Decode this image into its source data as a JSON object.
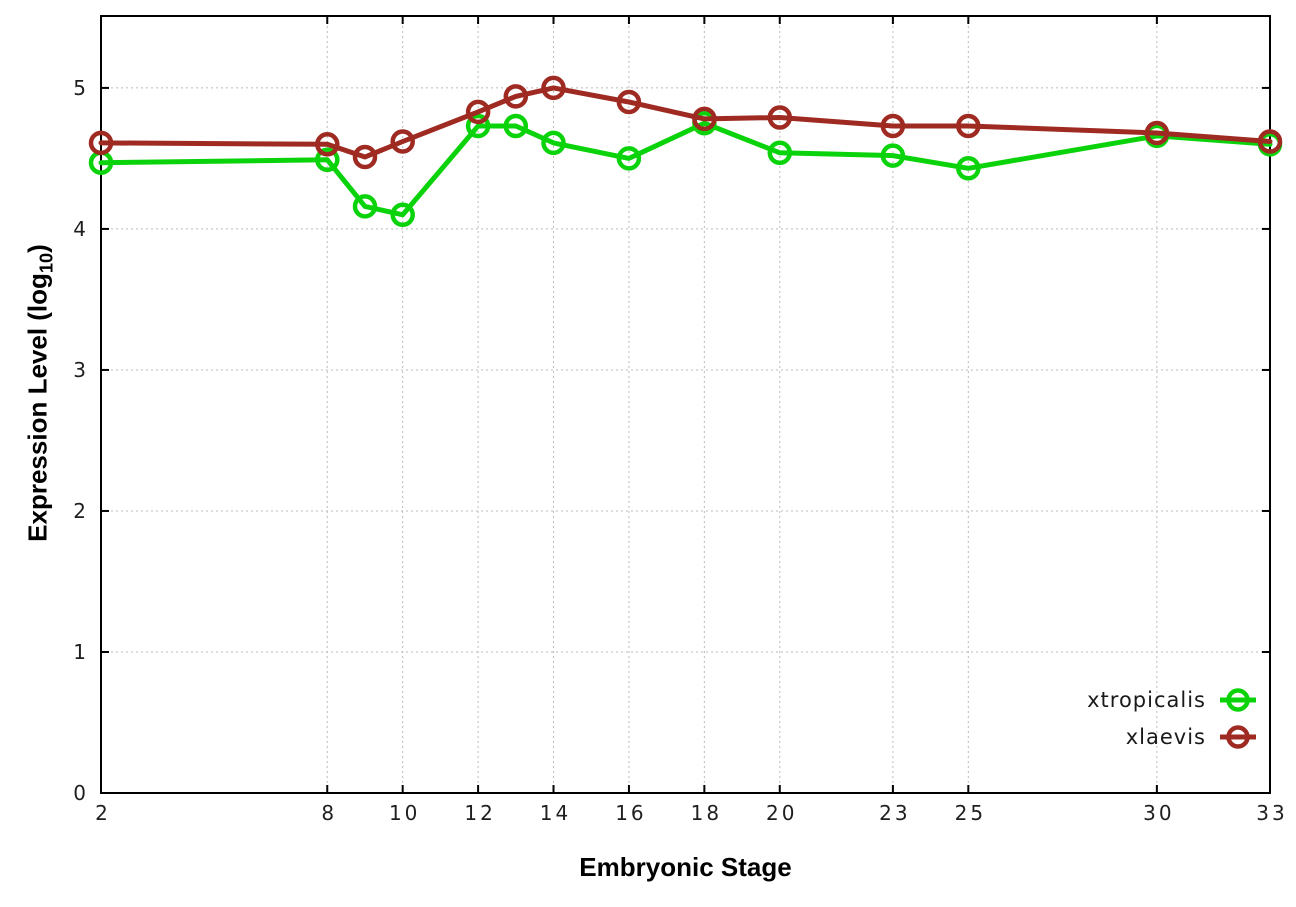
{
  "figure": {
    "xlabel": "Embryonic Stage",
    "ylabel_main": "Expression Level (log",
    "ylabel_sub": "10",
    "ylabel_end": ")"
  },
  "chart_data": {
    "type": "line",
    "title": "",
    "xlabel": "Embryonic Stage",
    "ylabel": "Expression Level (log10)",
    "x": [
      2,
      8,
      9,
      10,
      12,
      13,
      14,
      16,
      18,
      20,
      23,
      25,
      30,
      33
    ],
    "xticks": [
      2,
      8,
      10,
      12,
      14,
      16,
      18,
      20,
      23,
      25,
      30,
      33
    ],
    "yticks": [
      0,
      1,
      2,
      3,
      4,
      5
    ],
    "xlim": [
      2,
      33
    ],
    "ylim": [
      0,
      5.51
    ],
    "grid": "dotted",
    "legend_position": "inside-lower-right",
    "series": [
      {
        "name": "xtropicalis",
        "color": "#0bd30b",
        "marker": "open-circle",
        "values": [
          4.47,
          4.49,
          4.16,
          4.1,
          4.73,
          4.73,
          4.61,
          4.5,
          4.75,
          4.54,
          4.52,
          4.43,
          4.66,
          4.6
        ]
      },
      {
        "name": "xlaevis",
        "color": "#9e2a22",
        "marker": "open-circle",
        "values": [
          4.61,
          4.6,
          4.51,
          4.62,
          4.83,
          4.94,
          5.0,
          4.9,
          4.78,
          4.79,
          4.73,
          4.73,
          4.68,
          4.62
        ]
      }
    ],
    "axis_color": "#000000",
    "grid_color": "#bbbbbb",
    "tick_label_color": "#1f1f1f"
  }
}
